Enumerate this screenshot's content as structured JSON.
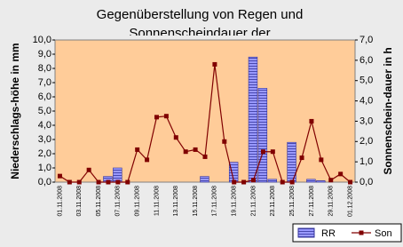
{
  "chart_data": {
    "type": "combo",
    "title": [
      "Gegenüberstellung von Regen und",
      "Sonnenscheindauer der"
    ],
    "y_label": "Niederschlags-höhe in mm",
    "y2_label": "Sonnenschein-dauer in h",
    "categories": [
      "01.11.2008",
      null,
      "03.11.2008",
      null,
      "05.11.2008",
      null,
      "07.11.2008",
      null,
      "09.11.2008",
      null,
      "11.11.2008",
      null,
      "13.11.2008",
      null,
      "15.11.2008",
      null,
      "17.11.2008",
      null,
      "19.11.2008",
      null,
      "21.11.2008",
      null,
      "23.11.2008",
      null,
      "25.11.2008",
      null,
      "27.11.2008",
      null,
      "29.11.2008",
      null,
      "01.12.2008"
    ],
    "series": [
      {
        "name": "RR",
        "type": "bar",
        "color": "#9999ff",
        "values": [
          0,
          0,
          0,
          0,
          0,
          0.4,
          1.0,
          0,
          0,
          0,
          0,
          0,
          0,
          0,
          0,
          0.4,
          0,
          0,
          1.4,
          0,
          8.8,
          6.6,
          0.2,
          0,
          2.8,
          0,
          0.2,
          0.1,
          0,
          0,
          0
        ]
      },
      {
        "name": "Son",
        "type": "line",
        "axis": "y2",
        "color": "#800000",
        "values": [
          0.3,
          0,
          0,
          0.6,
          0,
          0,
          0,
          0,
          1.6,
          1.1,
          3.2,
          3.25,
          2.2,
          1.5,
          1.6,
          1.25,
          5.8,
          2.0,
          0,
          0,
          0.1,
          1.5,
          1.5,
          0,
          0,
          1.2,
          3.0,
          1.1,
          0.1,
          0.4,
          0
        ]
      }
    ],
    "ylim": [
      0,
      10
    ],
    "yticks": [
      {
        "value": 0,
        "label": "0,0"
      },
      {
        "value": 1,
        "label": "1,0"
      },
      {
        "value": 2,
        "label": "2,0"
      },
      {
        "value": 3,
        "label": "3,0"
      },
      {
        "value": 4,
        "label": "4,0"
      },
      {
        "value": 5,
        "label": "5,0"
      },
      {
        "value": 6,
        "label": "6,0"
      },
      {
        "value": 7,
        "label": "7,0"
      },
      {
        "value": 8,
        "label": "8,0"
      },
      {
        "value": 9,
        "label": "9,0"
      },
      {
        "value": 10,
        "label": "10,0"
      }
    ],
    "y2lim": [
      0,
      7
    ],
    "y2ticks": [
      {
        "value": 0,
        "label": "0,0"
      },
      {
        "value": 1,
        "label": "1,0"
      },
      {
        "value": 2,
        "label": "2,0"
      },
      {
        "value": 3,
        "label": "3,0"
      },
      {
        "value": 4,
        "label": "4,0"
      },
      {
        "value": 5,
        "label": "5,0"
      },
      {
        "value": 6,
        "label": "6,0"
      },
      {
        "value": 7,
        "label": "7,0"
      }
    ],
    "plot_color": "#ffcc99",
    "legend": "bottom-right"
  }
}
